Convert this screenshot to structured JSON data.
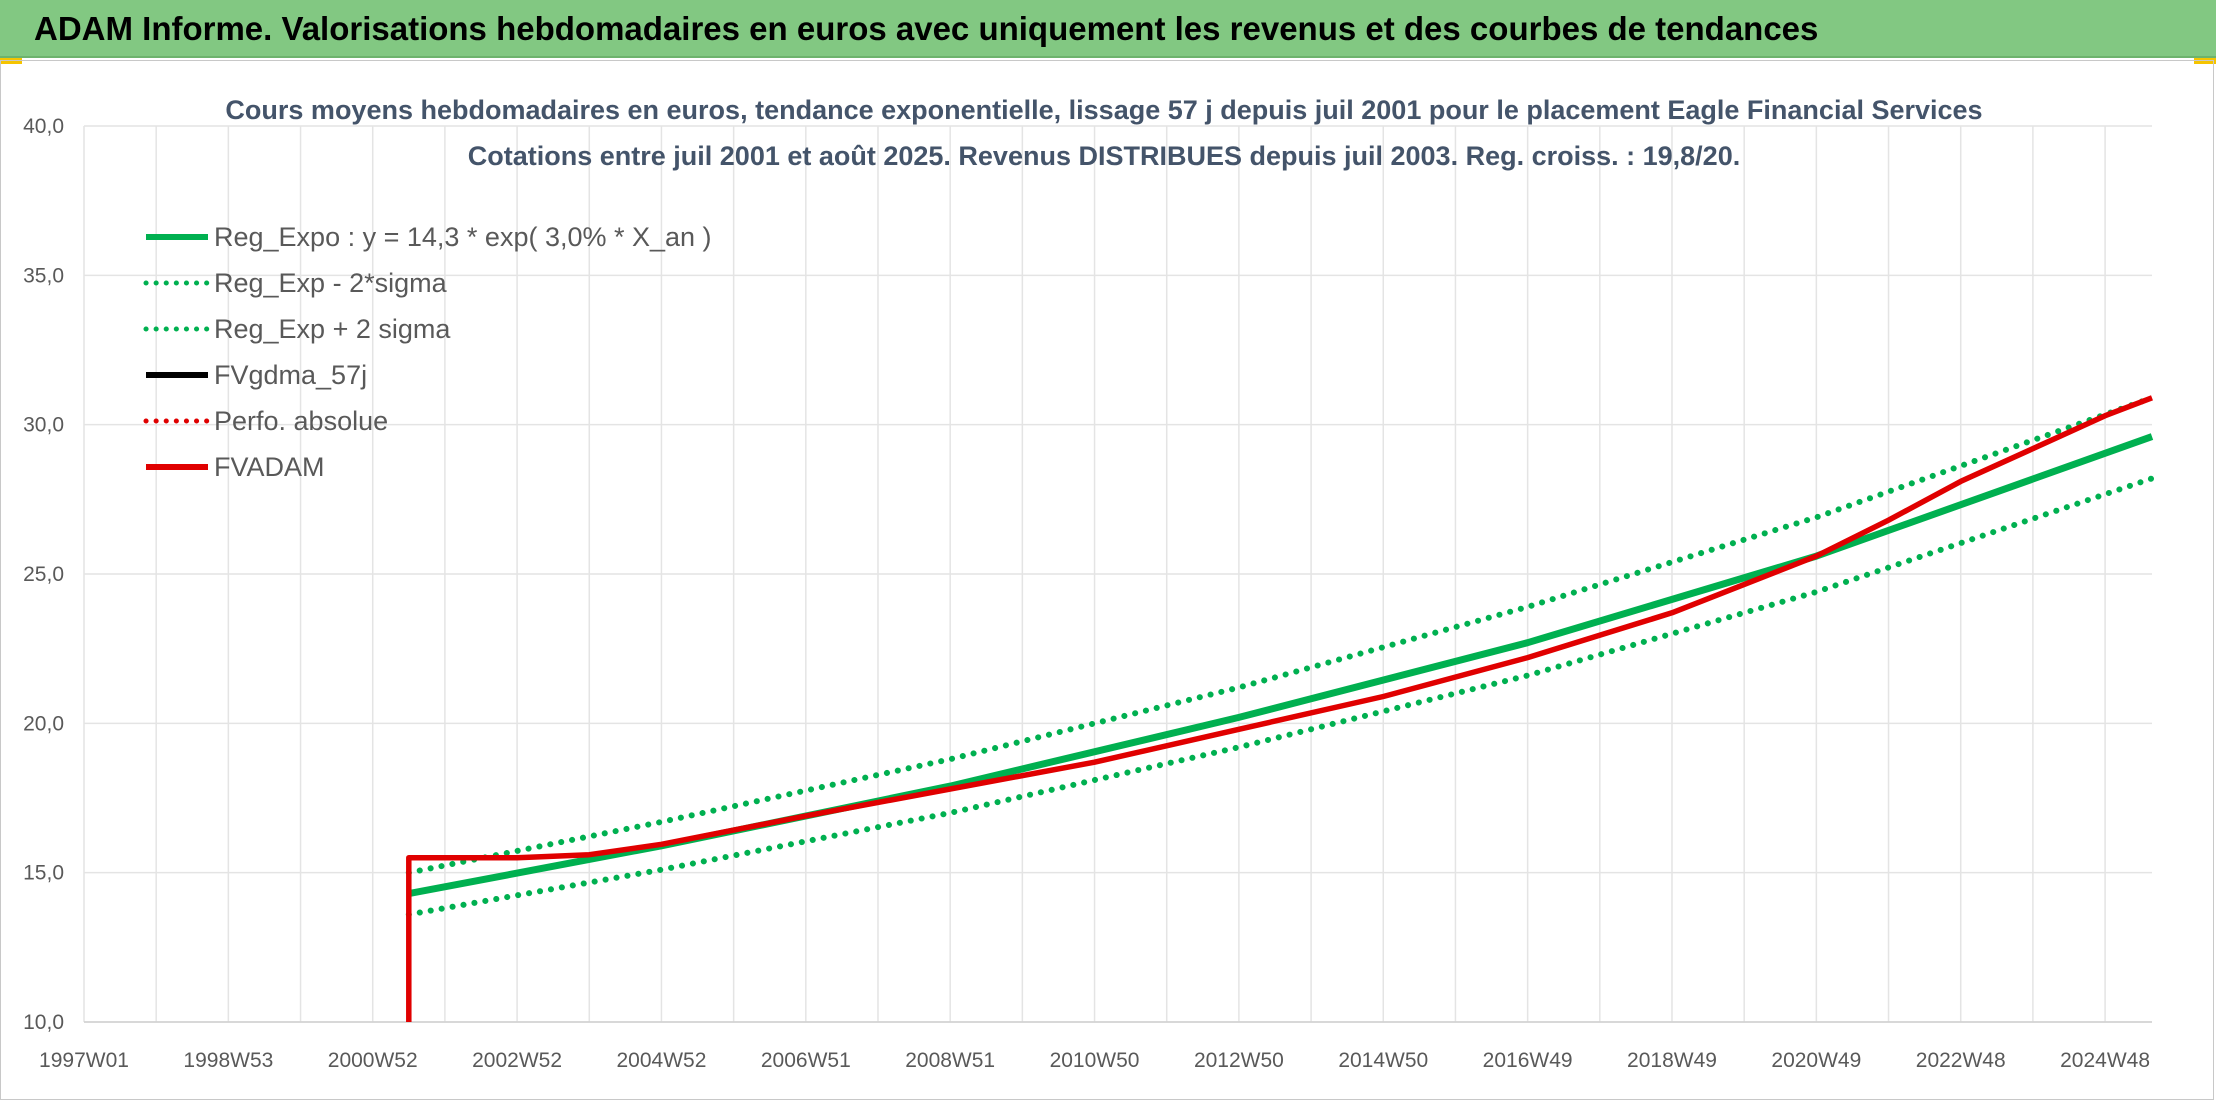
{
  "header": {
    "title": "ADAM Informe. Valorisations hebdomadaires en euros avec uniquement les revenus et des courbes de tendances"
  },
  "colors": {
    "banner_bg": "#82c882",
    "trend_green": "#00b050",
    "perf_red": "#e00000",
    "fvgdma_black": "#000000",
    "grid": "#e4e4e4"
  },
  "chart_data": {
    "type": "line",
    "title": "Cours moyens hebdomadaires en euros, tendance exponentielle, lissage 57 j depuis juil 2001 pour le placement Eagle Financial Services",
    "subtitle": "Cotations entre juil 2001 et août 2025. Revenus DISTRIBUES depuis juil 2003. Reg. croiss. : 19,8/20.",
    "xlabel": "",
    "ylabel": "",
    "ylim": [
      10,
      40
    ],
    "y_ticks": [
      "10,0",
      "15,0",
      "20,0",
      "25,0",
      "30,0",
      "35,0",
      "40,0"
    ],
    "x_range": [
      1997.0,
      2025.65
    ],
    "x_ticks": [
      {
        "label": "1997W01",
        "year": 1997.0
      },
      {
        "label": "1998W53",
        "year": 1999.0
      },
      {
        "label": "2000W52",
        "year": 2001.0
      },
      {
        "label": "2002W52",
        "year": 2003.0
      },
      {
        "label": "2004W52",
        "year": 2005.0
      },
      {
        "label": "2006W51",
        "year": 2007.0
      },
      {
        "label": "2008W51",
        "year": 2009.0
      },
      {
        "label": "2010W50",
        "year": 2011.0
      },
      {
        "label": "2012W50",
        "year": 2013.0
      },
      {
        "label": "2014W50",
        "year": 2015.0
      },
      {
        "label": "2016W49",
        "year": 2017.0
      },
      {
        "label": "2018W49",
        "year": 2019.0
      },
      {
        "label": "2020W49",
        "year": 2021.0
      },
      {
        "label": "2022W48",
        "year": 2023.0
      },
      {
        "label": "2024W48",
        "year": 2025.0
      }
    ],
    "grid": true,
    "legend_position": "top-left",
    "legend": [
      {
        "label": "Reg_Expo : y = 14,3 * exp( 3,0% *  X_an )",
        "color": "#00b050",
        "style": "solid"
      },
      {
        "label": "Reg_Exp - 2*sigma",
        "color": "#00b050",
        "style": "dotted"
      },
      {
        "label": "Reg_Exp + 2 sigma",
        "color": "#00b050",
        "style": "dotted"
      },
      {
        "label": "FVgdma_57j",
        "color": "#000000",
        "style": "solid"
      },
      {
        "label": "Perfo. absolue",
        "color": "#e00000",
        "style": "dotted"
      },
      {
        "label": "FVADAM",
        "color": "#e00000",
        "style": "solid"
      }
    ],
    "series": [
      {
        "name": "Reg_Expo : y = 14,3 * exp( 3,0% *  X_an )",
        "color": "#00b050",
        "style": "solid",
        "points": [
          [
            2001.5,
            14.3
          ],
          [
            2005,
            15.9
          ],
          [
            2009,
            17.9
          ],
          [
            2013,
            20.2
          ],
          [
            2017,
            22.7
          ],
          [
            2021,
            25.6
          ],
          [
            2025.65,
            29.6
          ]
        ]
      },
      {
        "name": "Reg_Exp - 2*sigma",
        "color": "#00b050",
        "style": "dotted",
        "points": [
          [
            2001.5,
            13.6
          ],
          [
            2005,
            15.1
          ],
          [
            2009,
            17.0
          ],
          [
            2013,
            19.2
          ],
          [
            2017,
            21.6
          ],
          [
            2021,
            24.4
          ],
          [
            2025.65,
            28.2
          ]
        ]
      },
      {
        "name": "Reg_Exp + 2 sigma",
        "color": "#00b050",
        "style": "dotted",
        "points": [
          [
            2001.5,
            15.0
          ],
          [
            2005,
            16.7
          ],
          [
            2009,
            18.8
          ],
          [
            2013,
            21.2
          ],
          [
            2017,
            23.9
          ],
          [
            2021,
            26.9
          ],
          [
            2025.65,
            30.9
          ]
        ]
      },
      {
        "name": "FVADAM",
        "color": "#e00000",
        "style": "solid",
        "points": [
          [
            2001.5,
            10.0
          ],
          [
            2001.5,
            15.5
          ],
          [
            2003.0,
            15.5
          ],
          [
            2004.0,
            15.6
          ],
          [
            2005.0,
            15.95
          ],
          [
            2007.0,
            16.9
          ],
          [
            2009.0,
            17.8
          ],
          [
            2011.0,
            18.7
          ],
          [
            2013.0,
            19.8
          ],
          [
            2015.0,
            20.9
          ],
          [
            2017.0,
            22.2
          ],
          [
            2019.0,
            23.7
          ],
          [
            2021.0,
            25.6
          ],
          [
            2022.0,
            26.8
          ],
          [
            2023.0,
            28.1
          ],
          [
            2024.0,
            29.2
          ],
          [
            2025.0,
            30.3
          ],
          [
            2025.65,
            30.9
          ]
        ]
      }
    ]
  }
}
